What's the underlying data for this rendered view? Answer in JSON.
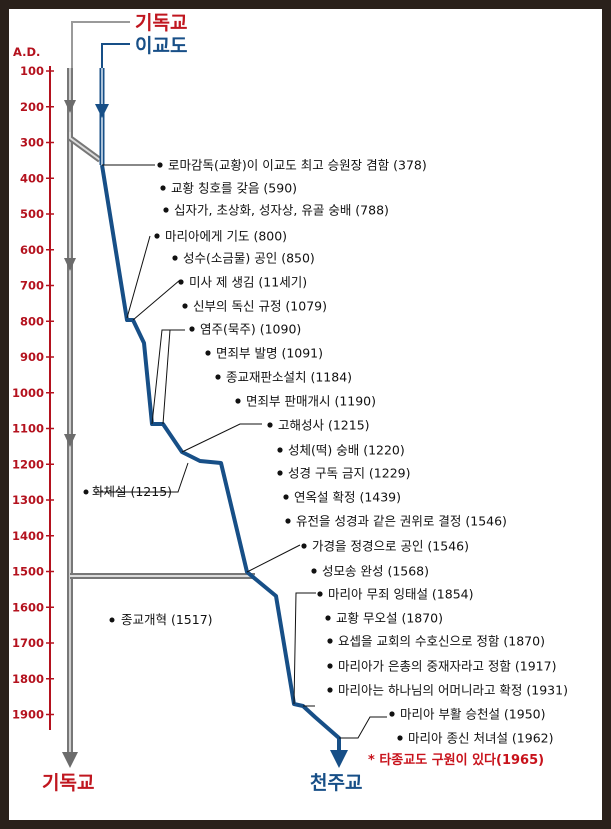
{
  "headers": {
    "top_christianity": "기독교",
    "top_heresy": "이교도",
    "bottom_christianity": "기독교",
    "bottom_catholic": "천주교",
    "axis_unit": "A.D."
  },
  "years": [
    "100",
    "200",
    "300",
    "400",
    "500",
    "600",
    "700",
    "800",
    "900",
    "1000",
    "1100",
    "1200",
    "1300",
    "1400",
    "1500",
    "1600",
    "1700",
    "1800",
    "1900"
  ],
  "events": [
    {
      "text": "로마감독(교황)이 이교도 최고 승원장 겸함 (378)"
    },
    {
      "text": "교황 칭호를 갖음 (590)"
    },
    {
      "text": "십자가, 초상화, 성자상, 유골 숭배 (788)"
    },
    {
      "text": "마리아에게 기도 (800)"
    },
    {
      "text": "성수(소금물) 공인 (850)"
    },
    {
      "text": "미사 제 생김 (11세기)"
    },
    {
      "text": "신부의 독신 규정 (1079)"
    },
    {
      "text": "염주(묵주) (1090)"
    },
    {
      "text": "면죄부 발명 (1091)"
    },
    {
      "text": "종교재판소설치 (1184)"
    },
    {
      "text": "면죄부 판매개시 (1190)"
    },
    {
      "text": "고해성사 (1215)"
    },
    {
      "text": "성체(떡) 숭배 (1220)"
    },
    {
      "text": "성경 구독 금지 (1229)"
    },
    {
      "text": "연옥설 확정 (1439)"
    },
    {
      "text": "유전을 성경과 같은 권위로 결정 (1546)"
    },
    {
      "text": "가경을 정경으로 공인 (1546)"
    },
    {
      "text": "성모송 완성 (1568)"
    },
    {
      "text": "마리아 무죄 잉태설 (1854)"
    },
    {
      "text": "교황 무오설 (1870)"
    },
    {
      "text": "요셉을 교회의 수호신으로 정함 (1870)"
    },
    {
      "text": "마리아가 은총의 중재자라고 정함 (1917)"
    },
    {
      "text": "마리아는 하나님의 어머니라고 확정 (1931)"
    },
    {
      "text": "마리아 부활 승천설 (1950)"
    },
    {
      "text": "마리아 종신 처녀설 (1962)"
    }
  ],
  "left_events": [
    {
      "text": "화체설 (1215)"
    },
    {
      "text": "종교개혁 (1517)"
    }
  ],
  "note": "* 타종교도 구원이 있다(1965)",
  "colors": {
    "year_red": "#b4121e",
    "catholic_blue": "#174f87",
    "christian_gray": "#707070",
    "note_red": "#c8121b"
  }
}
